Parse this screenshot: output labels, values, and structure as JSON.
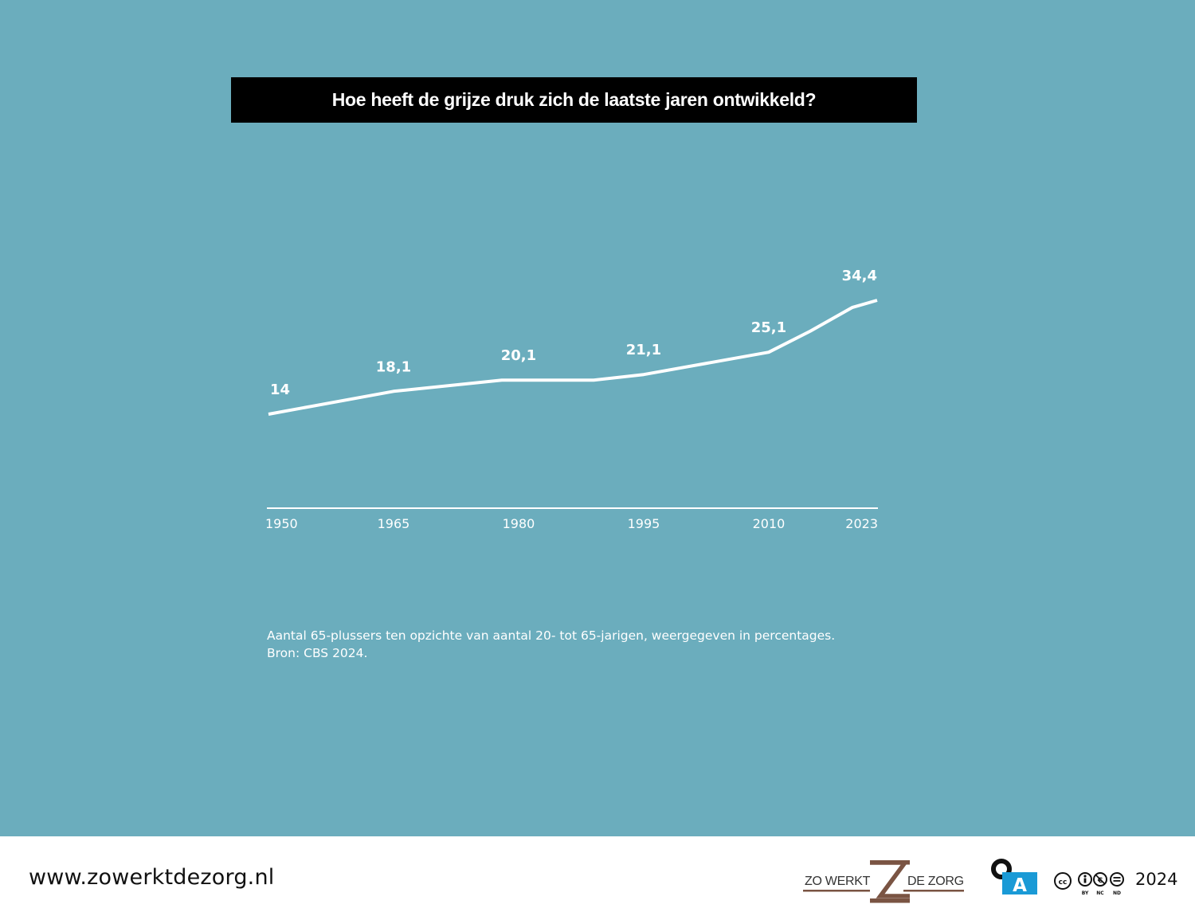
{
  "title": "Hoe heeft de grijze druk zich de laatste jaren ontwikkeld?",
  "chart_data": {
    "type": "line",
    "title": "Hoe heeft de grijze druk zich de laatste jaren ontwikkeld?",
    "xlabel": "",
    "ylabel": "",
    "x_tick_labels": [
      "1950",
      "1965",
      "1980",
      "1995",
      "2010",
      "2023"
    ],
    "series": [
      {
        "x": [
          1950,
          1965,
          1978,
          1989,
          1995,
          2010,
          2015,
          2020,
          2023
        ],
        "y": [
          14,
          18.1,
          20.1,
          20.1,
          21.1,
          25.1,
          28.9,
          33.1,
          34.4
        ]
      }
    ],
    "data_labels": [
      {
        "x": 1950,
        "text": "14"
      },
      {
        "x": 1965,
        "text": "18,1"
      },
      {
        "x": 1980,
        "text": "20,1"
      },
      {
        "x": 1995,
        "text": "21,1"
      },
      {
        "x": 2010,
        "text": "25,1"
      },
      {
        "x": 2023,
        "text": "34,4"
      }
    ],
    "grid": false,
    "legend": "none",
    "line_color": "#ffffff",
    "background_color": "#6badbd"
  },
  "note": {
    "line1": "Aantal 65-plussers ten opzichte van aantal 20- tot 65-jarigen, weergegeven in percentages.",
    "line2": "Bron: CBS 2024."
  },
  "footer": {
    "url": "www.zowerktdezorg.nl",
    "brand_left": "ZO WERKT",
    "brand_right": "DE ZORG",
    "oa_letter": "A",
    "cc_labels": [
      "BY",
      "NC",
      "ND"
    ],
    "year": "2024"
  }
}
